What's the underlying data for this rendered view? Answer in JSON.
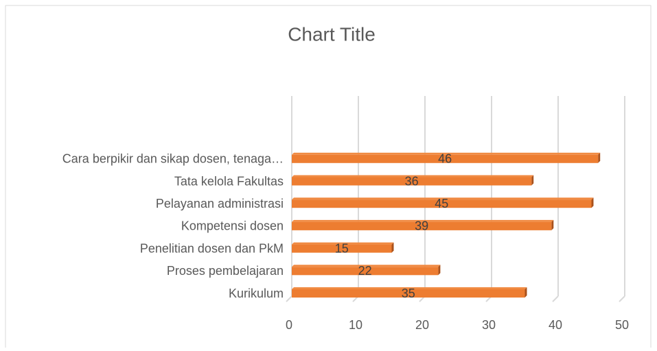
{
  "chart_data": {
    "type": "bar",
    "orientation": "horizontal",
    "title": "Chart Title",
    "categories": [
      "Kurikulum",
      "Proses pembelajaran",
      "Penelitian dosen dan PkM",
      "Kompetensi dosen",
      "Pelayanan administrasi",
      "Tata kelola Fakultas",
      "Cara berpikir dan sikap dosen, tenaga…"
    ],
    "values": [
      35,
      22,
      15,
      39,
      45,
      36,
      46
    ],
    "color": "#ed7d31",
    "xlim": [
      0,
      50
    ],
    "xticks": [
      0,
      10,
      20,
      30,
      40,
      50
    ],
    "grid": true
  }
}
